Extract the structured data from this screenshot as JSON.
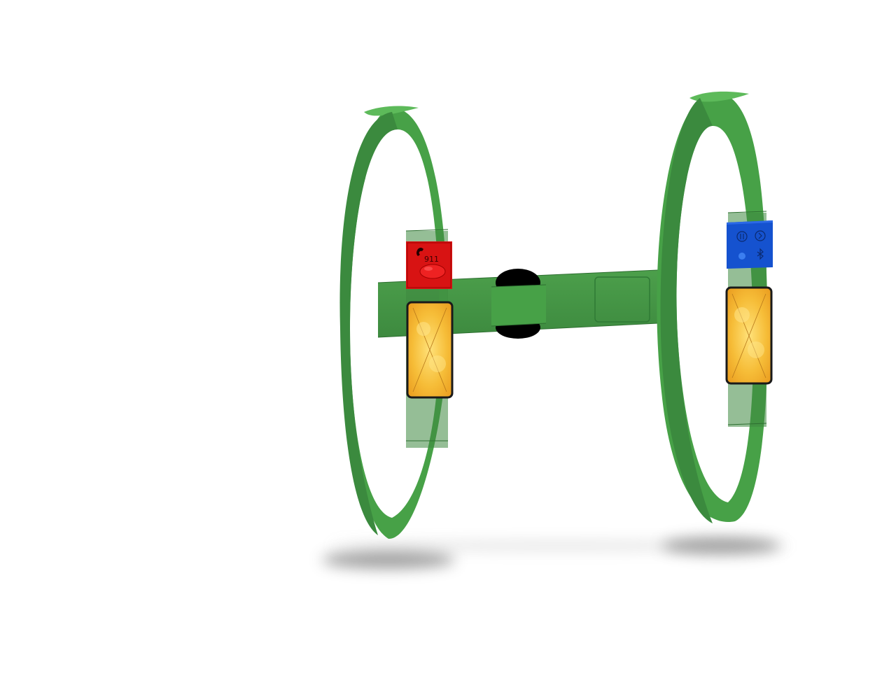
{
  "emergency_module": {
    "label": "911",
    "color": "#d81313",
    "button_color": "#e81a1a",
    "icons": [
      "phone-icon",
      "emergency-button"
    ]
  },
  "media_module": {
    "color": "#1552cf",
    "icons": [
      "pause-icon",
      "next-icon",
      "bluetooth-icon",
      "power-icon"
    ]
  },
  "harness": {
    "strap_color": "#47a147",
    "strap_shade": "#2f7a35",
    "reflector_color": "#f4b52e",
    "connector_color": "#000000"
  }
}
